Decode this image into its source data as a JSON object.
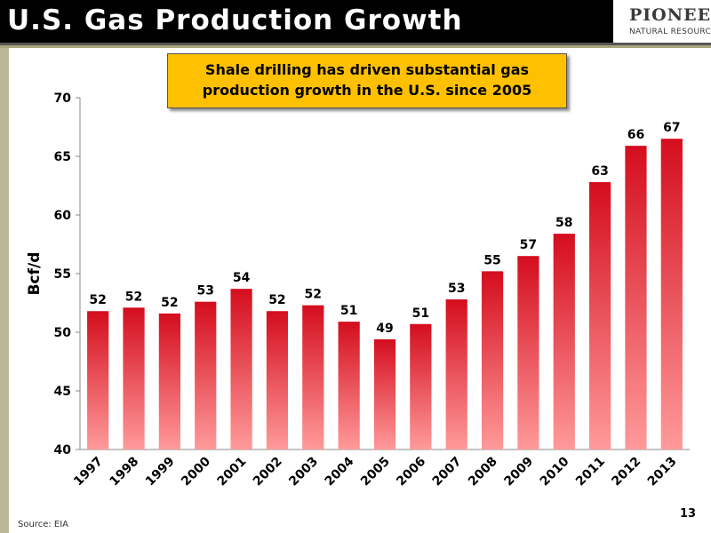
{
  "slide": {
    "title": "U.S. Gas Production Growth",
    "logo_main": "PIONEER",
    "logo_sub": "NATURAL RESOURCES",
    "callout_line1": "Shale drilling has driven substantial gas",
    "callout_line2": "production growth in the U.S. since 2005",
    "source": "Source:  EIA",
    "page_number": "13"
  },
  "colors": {
    "bar_top": "#d40d1e",
    "bar_bottom": "#ff9a9a",
    "callout": "#ffc000"
  },
  "chart_data": {
    "type": "bar",
    "categories": [
      "1997",
      "1998",
      "1999",
      "2000",
      "2001",
      "2002",
      "2003",
      "2004",
      "2005",
      "2006",
      "2007",
      "2008",
      "2009",
      "2010",
      "2011",
      "2012",
      "2013"
    ],
    "values": [
      51.8,
      52.1,
      51.6,
      52.6,
      53.7,
      51.8,
      52.3,
      50.9,
      49.4,
      50.7,
      52.8,
      55.2,
      56.5,
      58.4,
      62.8,
      65.9,
      66.5
    ],
    "value_labels": [
      "52",
      "52",
      "52",
      "53",
      "54",
      "52",
      "52",
      "51",
      "49",
      "51",
      "53",
      "55",
      "57",
      "58",
      "63",
      "66",
      "67"
    ],
    "ylabel": "Bcf/d",
    "xlabel": "",
    "ylim": [
      40,
      70
    ],
    "yticks": [
      "40",
      "45",
      "50",
      "55",
      "60",
      "65",
      "70"
    ],
    "grid": false,
    "legend": "none"
  }
}
